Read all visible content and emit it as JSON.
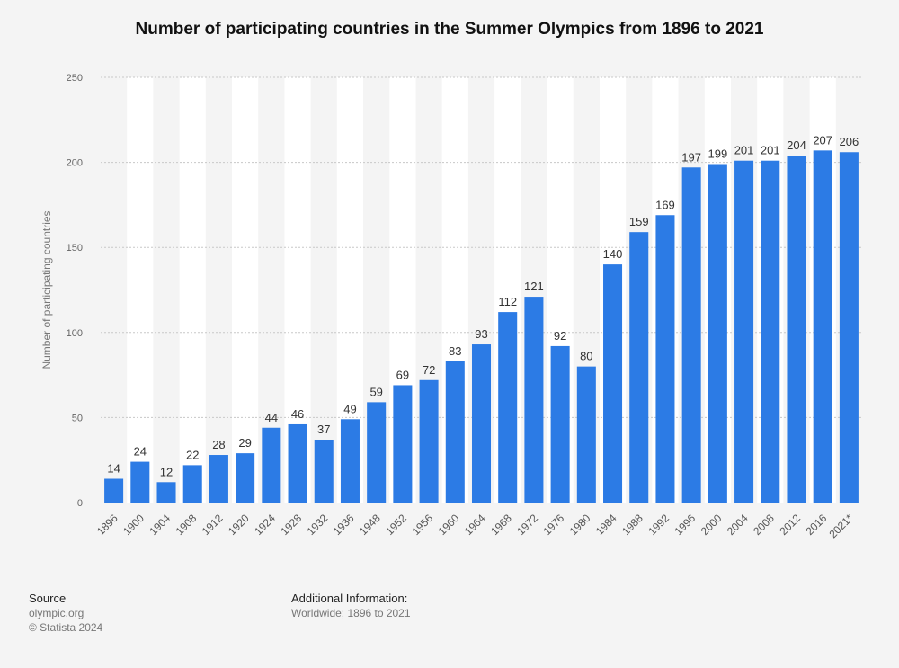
{
  "chart_data": {
    "type": "bar",
    "title": "Number of participating countries in the Summer Olympics from 1896 to 2021",
    "xlabel": "",
    "ylabel": "Number of participating countries",
    "ylim": [
      0,
      250
    ],
    "yticks": [
      0,
      50,
      100,
      150,
      200,
      250
    ],
    "grid": true,
    "categories": [
      "1896",
      "1900",
      "1904",
      "1908",
      "1912",
      "1920",
      "1924",
      "1928",
      "1932",
      "1936",
      "1948",
      "1952",
      "1956",
      "1960",
      "1964",
      "1968",
      "1972",
      "1976",
      "1980",
      "1984",
      "1988",
      "1992",
      "1996",
      "2000",
      "2004",
      "2008",
      "2012",
      "2016",
      "2021*"
    ],
    "values": [
      14,
      24,
      12,
      22,
      28,
      29,
      44,
      46,
      37,
      49,
      59,
      69,
      72,
      83,
      93,
      112,
      121,
      92,
      80,
      140,
      159,
      169,
      197,
      199,
      201,
      201,
      204,
      207,
      206
    ],
    "colors": {
      "bar": "#2c7be5",
      "band": "#ffffff",
      "background": "#f4f4f4",
      "grid": "#c8c8c8"
    }
  },
  "footer": {
    "source_heading": "Source",
    "source_lines": [
      "olympic.org",
      "© Statista 2024"
    ],
    "info_heading": "Additional Information:",
    "info_text": "Worldwide; 1896 to 2021"
  }
}
